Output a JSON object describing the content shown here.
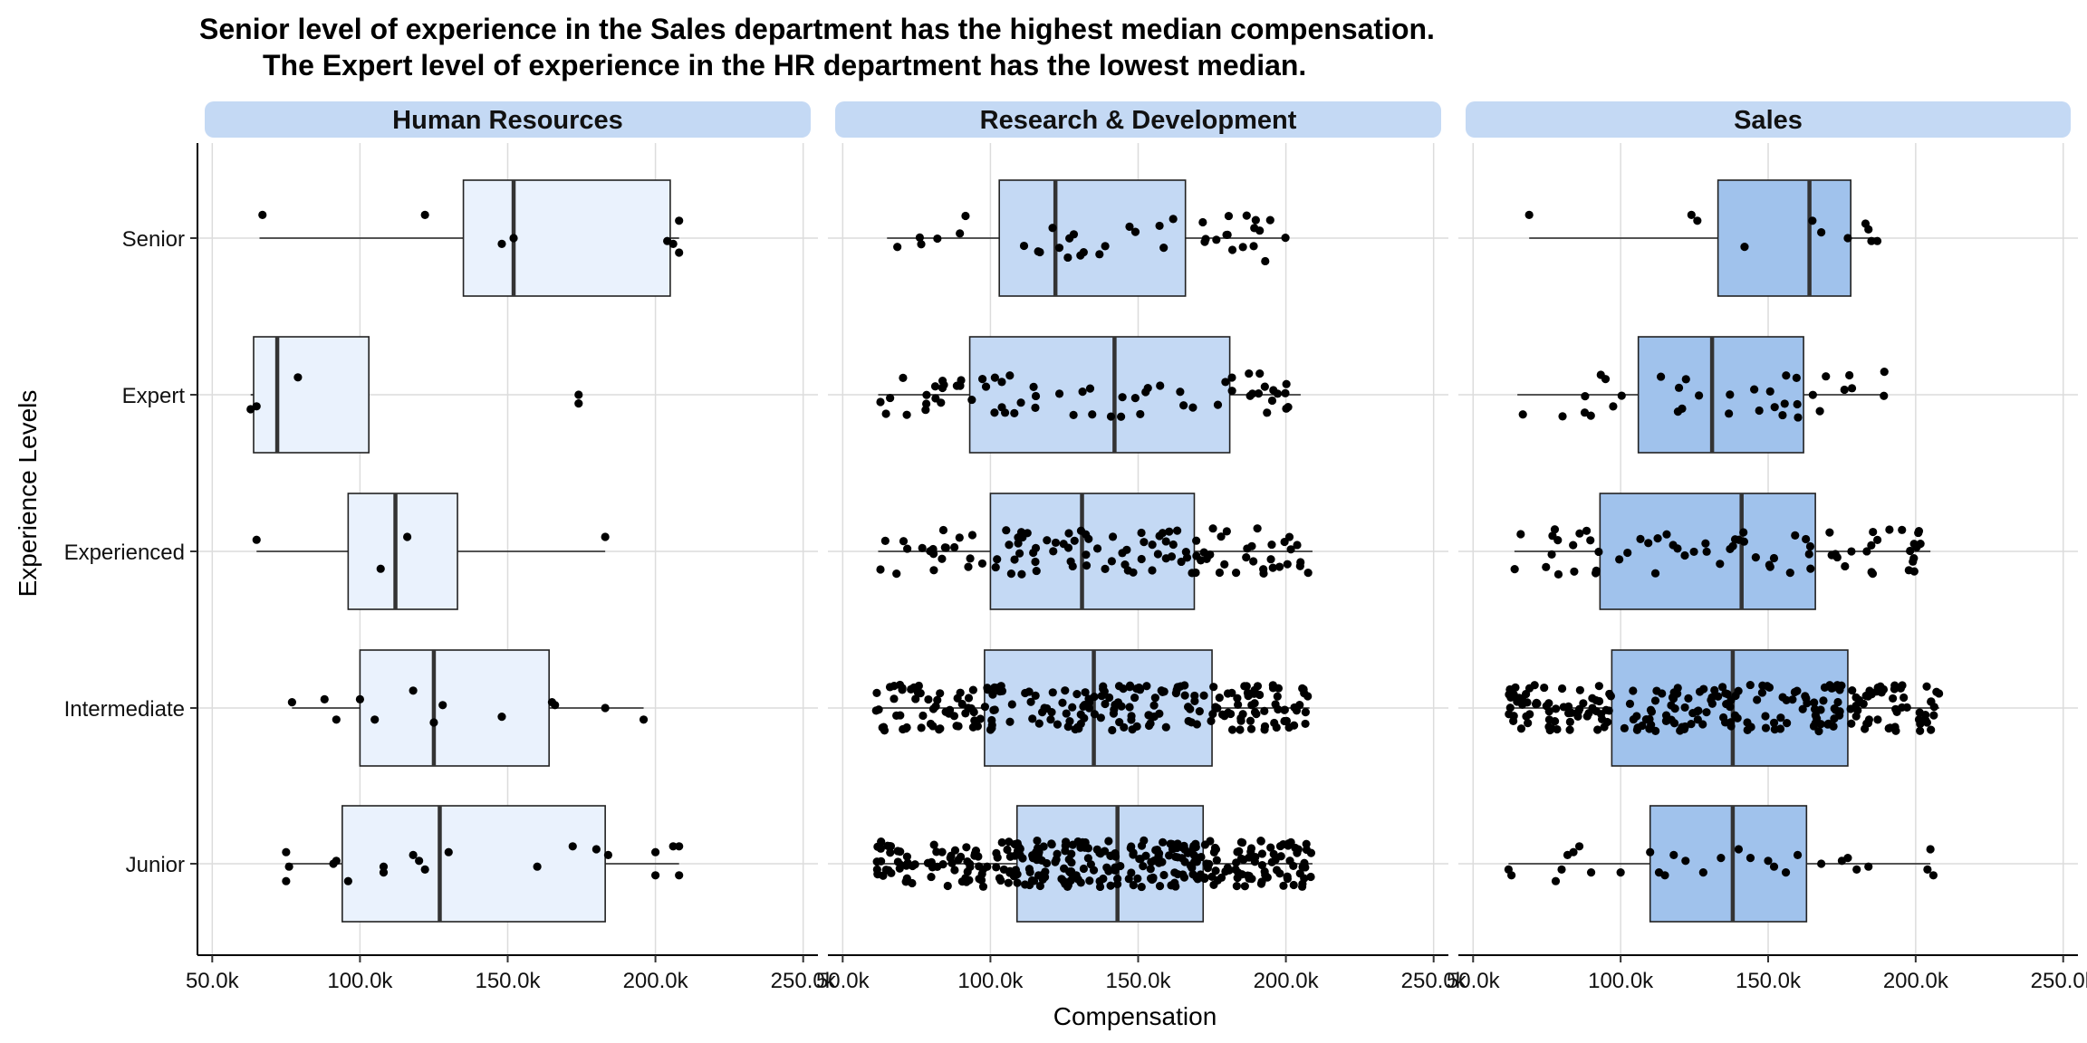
{
  "chart_data": {
    "type": "boxplot",
    "title_lines": [
      "Senior level of experience in the Sales department has the highest median compensation.",
      "The Expert level of experience in the HR department has the lowest median."
    ],
    "xlabel": "Compensation",
    "ylabel": "Experience Levels",
    "x_ticks": [
      50000,
      100000,
      150000,
      200000,
      250000
    ],
    "x_tick_labels": [
      "50.0k",
      "100.0k",
      "150.0k",
      "200.0k",
      "250.0k"
    ],
    "xlim": [
      45000,
      255000
    ],
    "categories": [
      "Senior",
      "Expert",
      "Experienced",
      "Intermediate",
      "Junior"
    ],
    "grid": true,
    "panels": [
      {
        "name": "Human Resources",
        "box_color": "#eaf2fd",
        "boxes": [
          {
            "level": "Senior",
            "q1": 135000,
            "median": 152000,
            "q3": 205000,
            "whisker_low": 66000,
            "whisker_high": 208000,
            "points": [
              [
                67000,
                0.4
              ],
              [
                122000,
                0.4
              ],
              [
                148000,
                -0.1
              ],
              [
                152000,
                0.0
              ],
              [
                204000,
                -0.05
              ],
              [
                208000,
                0.3
              ],
              [
                208000,
                -0.25
              ],
              [
                206000,
                -0.1
              ]
            ]
          },
          {
            "level": "Expert",
            "q1": 64000,
            "median": 72000,
            "q3": 103000,
            "whisker_low": 63000,
            "whisker_high": 103000,
            "points": [
              [
                79000,
                0.3
              ],
              [
                65000,
                -0.2
              ],
              [
                63000,
                -0.25
              ],
              [
                174000,
                0.0
              ],
              [
                174000,
                -0.15
              ]
            ]
          },
          {
            "level": "Experienced",
            "q1": 96000,
            "median": 112000,
            "q3": 133000,
            "whisker_low": 65000,
            "whisker_high": 183000,
            "points": [
              [
                65000,
                0.2
              ],
              [
                116000,
                0.25
              ],
              [
                107000,
                -0.3
              ],
              [
                183000,
                0.25
              ]
            ]
          },
          {
            "level": "Intermediate",
            "q1": 100000,
            "median": 125000,
            "q3": 164000,
            "whisker_low": 77000,
            "whisker_high": 196000,
            "points": [
              [
                77000,
                0.1
              ],
              [
                88000,
                0.15
              ],
              [
                92000,
                -0.2
              ],
              [
                100000,
                0.15
              ],
              [
                105000,
                -0.2
              ],
              [
                118000,
                0.3
              ],
              [
                128000,
                0.05
              ],
              [
                125000,
                -0.25
              ],
              [
                148000,
                -0.15
              ],
              [
                166000,
                0.05
              ],
              [
                165000,
                0.1
              ],
              [
                183000,
                0.0
              ],
              [
                196000,
                -0.2
              ]
            ]
          },
          {
            "level": "Junior",
            "q1": 94000,
            "median": 127000,
            "q3": 183000,
            "whisker_low": 75000,
            "whisker_high": 208000,
            "points": [
              [
                75000,
                0.2
              ],
              [
                76000,
                -0.05
              ],
              [
                75000,
                -0.3
              ],
              [
                91000,
                0.0
              ],
              [
                92000,
                0.05
              ],
              [
                96000,
                -0.3
              ],
              [
                108000,
                -0.05
              ],
              [
                108000,
                -0.15
              ],
              [
                118000,
                0.15
              ],
              [
                122000,
                -0.1
              ],
              [
                120000,
                0.05
              ],
              [
                130000,
                0.2
              ],
              [
                160000,
                -0.05
              ],
              [
                172000,
                0.3
              ],
              [
                180000,
                0.25
              ],
              [
                184000,
                0.15
              ],
              [
                200000,
                0.2
              ],
              [
                206000,
                0.3
              ],
              [
                208000,
                0.3
              ],
              [
                200000,
                -0.2
              ],
              [
                208000,
                -0.2
              ]
            ]
          }
        ]
      },
      {
        "name": "Research & Development",
        "box_color": "#c4d9f4",
        "boxes": [
          {
            "level": "Senior",
            "q1": 103000,
            "median": 122000,
            "q3": 166000,
            "whisker_low": 65000,
            "whisker_high": 200000,
            "points": []
          },
          {
            "level": "Expert",
            "q1": 93000,
            "median": 142000,
            "q3": 181000,
            "whisker_low": 62000,
            "whisker_high": 205000,
            "points": []
          },
          {
            "level": "Experienced",
            "q1": 100000,
            "median": 131000,
            "q3": 169000,
            "whisker_low": 62000,
            "whisker_high": 209000,
            "points": []
          },
          {
            "level": "Intermediate",
            "q1": 98000,
            "median": 135000,
            "q3": 175000,
            "whisker_low": 61000,
            "whisker_high": 208000,
            "points": []
          },
          {
            "level": "Junior",
            "q1": 109000,
            "median": 143000,
            "q3": 172000,
            "whisker_low": 61000,
            "whisker_high": 209000,
            "points": []
          }
        ],
        "point_counts": [
          40,
          65,
          110,
          220,
          330
        ]
      },
      {
        "name": "Sales",
        "box_color": "#a0c2ec",
        "boxes": [
          {
            "level": "Senior",
            "q1": 133000,
            "median": 164000,
            "q3": 178000,
            "whisker_low": 69000,
            "whisker_high": 187000,
            "points": [
              [
                69000,
                0.4
              ],
              [
                124000,
                0.4
              ],
              [
                126000,
                0.3
              ],
              [
                142000,
                -0.15
              ],
              [
                165000,
                0.3
              ],
              [
                168000,
                0.1
              ],
              [
                177000,
                0.0
              ],
              [
                183000,
                0.25
              ],
              [
                185000,
                -0.05
              ],
              [
                187000,
                -0.05
              ],
              [
                184000,
                0.15
              ]
            ]
          },
          {
            "level": "Expert",
            "q1": 106000,
            "median": 131000,
            "q3": 162000,
            "whisker_low": 65000,
            "whisker_high": 190000,
            "points": []
          },
          {
            "level": "Experienced",
            "q1": 93000,
            "median": 141000,
            "q3": 166000,
            "whisker_low": 64000,
            "whisker_high": 205000,
            "points": []
          },
          {
            "level": "Intermediate",
            "q1": 97000,
            "median": 138000,
            "q3": 177000,
            "whisker_low": 62000,
            "whisker_high": 208000,
            "points": []
          },
          {
            "level": "Junior",
            "q1": 110000,
            "median": 138000,
            "q3": 163000,
            "whisker_low": 62000,
            "whisker_high": 205000,
            "points": [
              [
                62000,
                -0.1
              ],
              [
                63000,
                -0.2
              ],
              [
                82000,
                0.15
              ],
              [
                84000,
                0.2
              ],
              [
                86000,
                0.3
              ],
              [
                80000,
                -0.1
              ],
              [
                78000,
                -0.3
              ],
              [
                90000,
                -0.15
              ],
              [
                100000,
                -0.15
              ],
              [
                110000,
                0.2
              ],
              [
                113000,
                -0.15
              ],
              [
                115000,
                -0.2
              ],
              [
                118000,
                0.15
              ],
              [
                122000,
                0.05
              ],
              [
                128000,
                -0.15
              ],
              [
                134000,
                0.1
              ],
              [
                140000,
                0.25
              ],
              [
                144000,
                0.1
              ],
              [
                150000,
                0.05
              ],
              [
                152000,
                -0.05
              ],
              [
                156000,
                -0.15
              ],
              [
                160000,
                0.15
              ],
              [
                168000,
                0.0
              ],
              [
                175000,
                0.05
              ],
              [
                177000,
                0.1
              ],
              [
                180000,
                -0.1
              ],
              [
                184000,
                -0.05
              ],
              [
                204000,
                -0.1
              ],
              [
                205000,
                0.25
              ],
              [
                206000,
                -0.2
              ]
            ]
          }
        ],
        "point_counts": [
          0,
          35,
          70,
          230,
          0
        ]
      }
    ]
  }
}
